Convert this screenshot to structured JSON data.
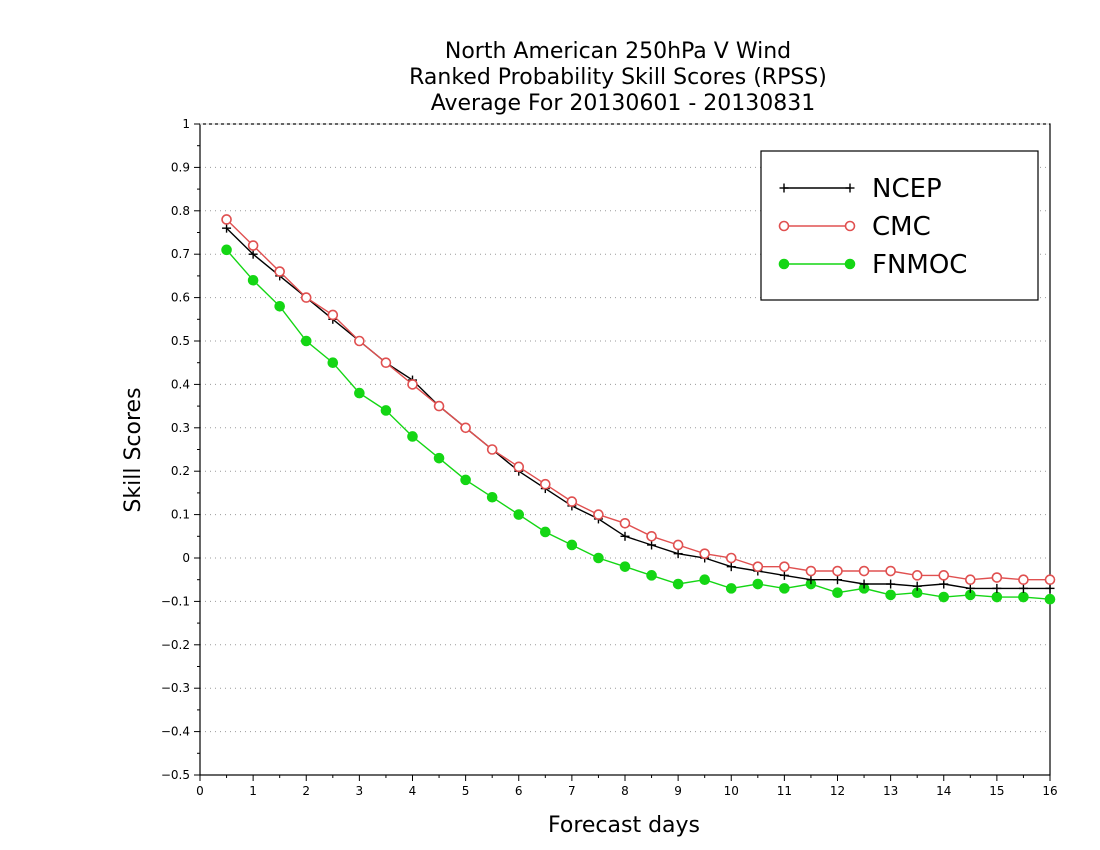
{
  "chart_data": {
    "type": "line",
    "title": [
      "North American 250hPa V Wind",
      "Ranked Probability Skill Scores (RPSS)",
      "Average For 20130601 - 20130831"
    ],
    "xlabel": "Forecast days",
    "ylabel": "Skill Scores",
    "xlim": [
      0,
      16
    ],
    "ylim": [
      -0.5,
      1
    ],
    "xticks": [
      "0",
      "1",
      "2",
      "3",
      "4",
      "5",
      "6",
      "7",
      "8",
      "9",
      "10",
      "11",
      "12",
      "13",
      "14",
      "15",
      "16"
    ],
    "yticks": [
      "−0.5",
      "−0.4",
      "−0.3",
      "−0.2",
      "−0.1",
      "0",
      "0.1",
      "0.2",
      "0.3",
      "0.4",
      "0.5",
      "0.6",
      "0.7",
      "0.8",
      "0.9",
      "1"
    ],
    "grid": "horizontal-dotted",
    "legend_position": "top-right",
    "x": [
      0.5,
      1,
      1.5,
      2,
      2.5,
      3,
      3.5,
      4,
      4.5,
      5,
      5.5,
      6,
      6.5,
      7,
      7.5,
      8,
      8.5,
      9,
      9.5,
      10,
      10.5,
      11,
      11.5,
      12,
      12.5,
      13,
      13.5,
      14,
      14.5,
      15,
      15.5,
      16
    ],
    "series": [
      {
        "name": "NCEP",
        "color": "#000000",
        "marker": "plus",
        "values": [
          0.76,
          0.7,
          0.65,
          0.6,
          0.55,
          0.5,
          0.45,
          0.41,
          0.35,
          0.3,
          0.25,
          0.2,
          0.16,
          0.12,
          0.09,
          0.05,
          0.03,
          0.01,
          0.0,
          -0.02,
          -0.03,
          -0.04,
          -0.05,
          -0.05,
          -0.06,
          -0.06,
          -0.065,
          -0.06,
          -0.07,
          -0.07,
          -0.07,
          -0.07
        ]
      },
      {
        "name": "CMC",
        "color": "#e05050",
        "marker": "open-circle",
        "values": [
          0.78,
          0.72,
          0.66,
          0.6,
          0.56,
          0.5,
          0.45,
          0.4,
          0.35,
          0.3,
          0.25,
          0.21,
          0.17,
          0.13,
          0.1,
          0.08,
          0.05,
          0.03,
          0.01,
          0.0,
          -0.02,
          -0.02,
          -0.03,
          -0.03,
          -0.03,
          -0.03,
          -0.04,
          -0.04,
          -0.05,
          -0.045,
          -0.05,
          -0.05
        ]
      },
      {
        "name": "FNMOC",
        "color": "#14d614",
        "marker": "filled-circle",
        "values": [
          0.71,
          0.64,
          0.58,
          0.5,
          0.45,
          0.38,
          0.34,
          0.28,
          0.23,
          0.18,
          0.14,
          0.1,
          0.06,
          0.03,
          0.0,
          -0.02,
          -0.04,
          -0.06,
          -0.05,
          -0.07,
          -0.06,
          -0.07,
          -0.06,
          -0.08,
          -0.07,
          -0.085,
          -0.08,
          -0.09,
          -0.085,
          -0.09,
          -0.09,
          -0.095
        ]
      }
    ]
  }
}
